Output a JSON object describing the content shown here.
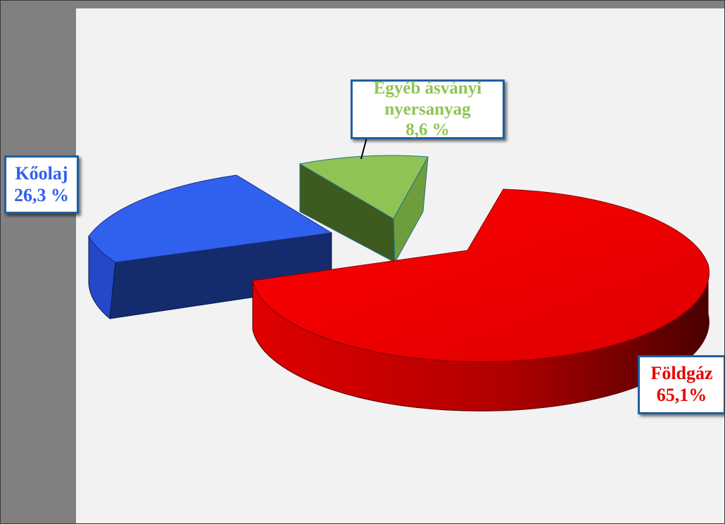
{
  "chart_data": {
    "type": "pie",
    "style": "3d-exploded",
    "labels": [
      "Földgáz",
      "Kőolaj",
      "Egyéb ásványi nyersanyag"
    ],
    "values": [
      65.1,
      26.3,
      8.6
    ],
    "label_texts": {
      "foldgaz": {
        "name": "Földgáz",
        "value": "65,1%"
      },
      "koolaj": {
        "name": "Kőolaj",
        "value": "26,3 %"
      },
      "egyeb": {
        "line1": "Egyéb ásványi",
        "line2": "nyersanyag",
        "value": "8,6 %"
      }
    },
    "colors": {
      "foldgaz": "#e60000",
      "koolaj": "#3060ee",
      "egyeb": "#8fc454"
    },
    "title": "",
    "legend": "none"
  }
}
